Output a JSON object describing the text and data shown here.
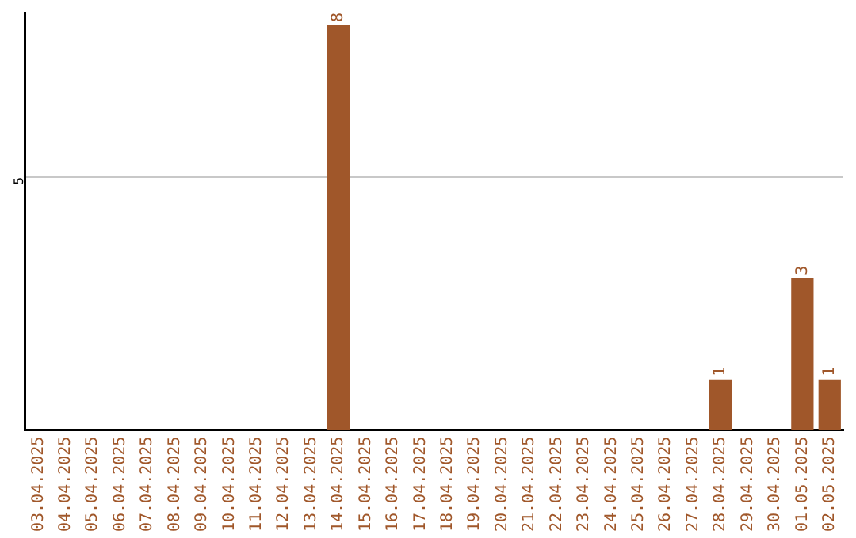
{
  "chart_data": {
    "type": "bar",
    "categories": [
      "03.04.2025",
      "04.04.2025",
      "05.04.2025",
      "06.04.2025",
      "07.04.2025",
      "08.04.2025",
      "09.04.2025",
      "10.04.2025",
      "11.04.2025",
      "12.04.2025",
      "13.04.2025",
      "14.04.2025",
      "15.04.2025",
      "16.04.2025",
      "17.04.2025",
      "18.04.2025",
      "19.04.2025",
      "20.04.2025",
      "21.04.2025",
      "22.04.2025",
      "23.04.2025",
      "24.04.2025",
      "25.04.2025",
      "26.04.2025",
      "27.04.2025",
      "28.04.2025",
      "29.04.2025",
      "30.04.2025",
      "01.05.2025",
      "02.05.2025"
    ],
    "values": [
      0,
      0,
      0,
      0,
      0,
      0,
      0,
      0,
      0,
      0,
      0,
      8,
      0,
      0,
      0,
      0,
      0,
      0,
      0,
      0,
      0,
      0,
      0,
      0,
      0,
      1,
      0,
      0,
      3,
      1
    ],
    "value_labels": [
      null,
      null,
      null,
      null,
      null,
      null,
      null,
      null,
      null,
      null,
      null,
      "8",
      null,
      null,
      null,
      null,
      null,
      null,
      null,
      null,
      null,
      null,
      null,
      null,
      null,
      "1",
      null,
      null,
      "3",
      "1"
    ],
    "color": "#a0572a",
    "ylim": [
      0,
      8.25
    ],
    "yticks": [
      5
    ],
    "grid": "y",
    "legend": false
  }
}
